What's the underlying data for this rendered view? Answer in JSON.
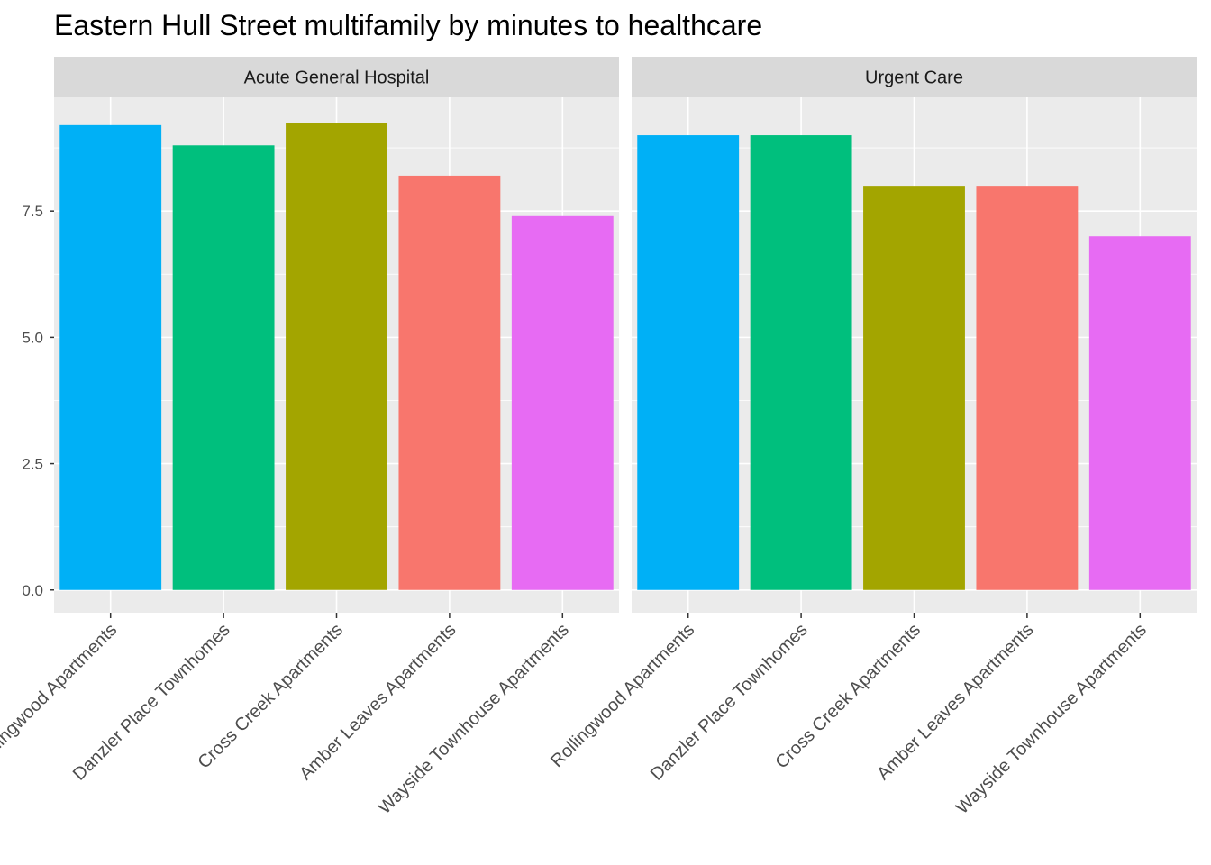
{
  "chart_data": {
    "type": "bar",
    "title": "Eastern Hull Street multifamily by minutes to healthcare",
    "xlabel": "",
    "ylabel": "",
    "ylim": [
      0,
      9.5
    ],
    "y_ticks": [
      "0.0",
      "2.5",
      "5.0",
      "7.5"
    ],
    "y_tick_values": [
      0,
      2.5,
      5,
      7.5
    ],
    "grid": true,
    "legend": "none",
    "categories": [
      "Rollingwood Apartments",
      "Danzler Place Townhomes",
      "Cross Creek Apartments",
      "Amber Leaves Apartments",
      "Wayside Townhouse Apartments"
    ],
    "colors": [
      "#00B0F6",
      "#00BF7D",
      "#A3A500",
      "#F8766D",
      "#E76BF3"
    ],
    "facets": [
      {
        "name": "Acute General Hospital",
        "values": [
          9.2,
          8.8,
          9.25,
          8.2,
          7.4
        ]
      },
      {
        "name": "Urgent Care",
        "values": [
          9.0,
          9.0,
          8.0,
          8.0,
          7.0
        ]
      }
    ]
  }
}
